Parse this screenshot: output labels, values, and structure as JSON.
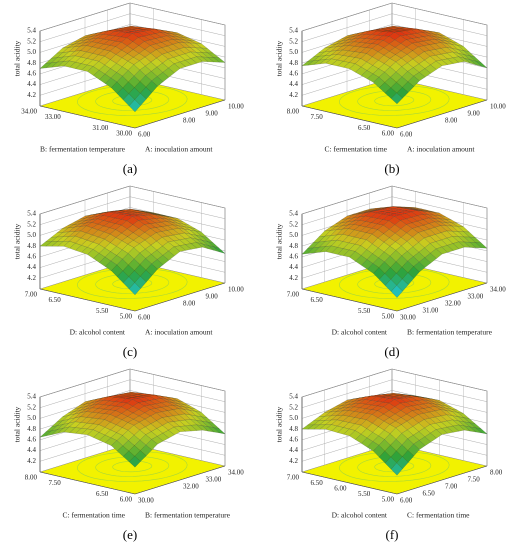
{
  "chart_data": [
    {
      "type": "surface",
      "panel": "(a)",
      "zlabel": "total acidity",
      "xlabel": "A: inoculation amount",
      "ylabel": "B: fermentation temperature",
      "xlim": [
        6,
        10
      ],
      "ylim": [
        30,
        34
      ],
      "zlim": [
        4.0,
        5.4
      ],
      "xticks": [
        {
          "value": 6,
          "label": "6.00"
        },
        {
          "value": 8,
          "label": "8.00"
        },
        {
          "value": 9,
          "label": "9.00"
        },
        {
          "value": 10,
          "label": "10.00"
        }
      ],
      "yticks": [
        {
          "value": 30,
          "label": "30.00"
        },
        {
          "value": 31,
          "label": "31.00"
        },
        {
          "value": 33,
          "label": "33.00"
        },
        {
          "value": 34,
          "label": "34.00"
        }
      ],
      "zticks": [
        4.2,
        4.4,
        4.6,
        4.8,
        {
          "value": 5,
          "label": "5.0"
        },
        5.2,
        5.4
      ],
      "colors": [
        "#20c8e0",
        "#2ea23a",
        "#c8d020",
        "#e03010"
      ],
      "z": [
        [
          4.3,
          4.65,
          4.85,
          4.85,
          4.7
        ],
        [
          4.65,
          4.95,
          5.1,
          5.1,
          4.95
        ],
        [
          4.85,
          5.1,
          5.3,
          5.25,
          5.05
        ],
        [
          4.85,
          5.1,
          5.25,
          5.2,
          5.0
        ],
        [
          4.7,
          4.95,
          5.05,
          5.0,
          4.9
        ]
      ]
    },
    {
      "type": "surface",
      "panel": "(b)",
      "zlabel": "total acidity",
      "xlabel": "A: inoculation amount",
      "ylabel": "C: fermentation time",
      "xlim": [
        6,
        10
      ],
      "ylim": [
        6,
        8
      ],
      "zlim": [
        4.0,
        5.4
      ],
      "xticks": [
        {
          "value": 6,
          "label": "6.00"
        },
        {
          "value": 8,
          "label": "8.00"
        },
        {
          "value": 9,
          "label": "9.00"
        },
        {
          "value": 10,
          "label": "10.00"
        }
      ],
      "yticks": [
        {
          "value": 6,
          "label": "6.00"
        },
        {
          "value": 6.5,
          "label": "6.50"
        },
        {
          "value": 7.5,
          "label": "7.50"
        },
        {
          "value": 8,
          "label": "8.00"
        }
      ],
      "zticks": [
        4.2,
        4.4,
        4.6,
        4.8,
        {
          "value": 5,
          "label": "5.0"
        },
        5.2,
        5.4
      ],
      "colors": [
        "#20c8e0",
        "#2ea23a",
        "#c8d020",
        "#e03010"
      ],
      "z": [
        [
          4.45,
          4.75,
          4.9,
          4.85,
          4.6
        ],
        [
          4.75,
          5.0,
          5.15,
          5.1,
          4.9
        ],
        [
          4.9,
          5.15,
          5.32,
          5.25,
          5.05
        ],
        [
          4.9,
          5.1,
          5.25,
          5.2,
          5.0
        ],
        [
          4.75,
          4.95,
          5.05,
          5.0,
          4.85
        ]
      ]
    },
    {
      "type": "surface",
      "panel": "(c)",
      "zlabel": "total acidity",
      "xlabel": "A: inoculation amount",
      "ylabel": "D: alcohol content",
      "xlim": [
        6,
        10
      ],
      "ylim": [
        5,
        7
      ],
      "zlim": [
        4.0,
        5.4
      ],
      "xticks": [
        {
          "value": 6,
          "label": "6.00"
        },
        {
          "value": 8,
          "label": "8.00"
        },
        {
          "value": 9,
          "label": "9.00"
        },
        {
          "value": 10,
          "label": "10.00"
        }
      ],
      "yticks": [
        {
          "value": 5,
          "label": "5.00"
        },
        {
          "value": 5.5,
          "label": "5.50"
        },
        {
          "value": 6.5,
          "label": "6.50"
        },
        {
          "value": 7,
          "label": "7.00"
        }
      ],
      "zticks": [
        4.2,
        4.4,
        4.6,
        4.8,
        {
          "value": 5,
          "label": "5.0"
        },
        5.2,
        5.4
      ],
      "colors": [
        "#20c8e0",
        "#2ea23a",
        "#c8d020",
        "#e03010"
      ],
      "z": [
        [
          4.3,
          4.65,
          4.85,
          4.8,
          4.55
        ],
        [
          4.65,
          4.95,
          5.1,
          5.05,
          4.85
        ],
        [
          4.85,
          5.1,
          5.3,
          5.2,
          5.0
        ],
        [
          4.9,
          5.15,
          5.28,
          5.2,
          5.0
        ],
        [
          4.8,
          5.0,
          5.1,
          5.05,
          4.9
        ]
      ]
    },
    {
      "type": "surface",
      "panel": "(d)",
      "zlabel": "total acidity",
      "xlabel": "B: fermentation temperature",
      "ylabel": "D: alcohol content",
      "xlim": [
        30,
        34
      ],
      "ylim": [
        5,
        7
      ],
      "zlim": [
        4.0,
        5.4
      ],
      "xticks": [
        {
          "value": 30,
          "label": "30.00"
        },
        {
          "value": 31,
          "label": "31.00"
        },
        {
          "value": 32,
          "label": "32.00"
        },
        {
          "value": 33,
          "label": "33.00"
        },
        {
          "value": 34,
          "label": "34.00"
        }
      ],
      "yticks": [
        {
          "value": 5,
          "label": "5.00"
        },
        {
          "value": 5.5,
          "label": "5.50"
        },
        {
          "value": 6.5,
          "label": "6.50"
        },
        {
          "value": 7,
          "label": "7.00"
        }
      ],
      "zticks": [
        4.2,
        4.4,
        4.6,
        4.8,
        {
          "value": 5,
          "label": "5.0"
        },
        5.2,
        5.4
      ],
      "colors": [
        "#20c8e0",
        "#2ea23a",
        "#c8d020",
        "#e03010"
      ],
      "z": [
        [
          4.25,
          4.6,
          4.8,
          4.8,
          4.65
        ],
        [
          4.6,
          4.9,
          5.1,
          5.1,
          4.95
        ],
        [
          4.8,
          5.1,
          5.3,
          5.28,
          5.1
        ],
        [
          4.8,
          5.1,
          5.28,
          5.25,
          5.1
        ],
        [
          4.65,
          4.95,
          5.1,
          5.1,
          5.0
        ]
      ]
    },
    {
      "type": "surface",
      "panel": "(e)",
      "zlabel": "total acidity",
      "xlabel": "B: fermentation temperature",
      "ylabel": "C: fermentation time",
      "xlim": [
        30,
        34
      ],
      "ylim": [
        6,
        8
      ],
      "zlim": [
        4.0,
        5.4
      ],
      "xticks": [
        {
          "value": 30,
          "label": "30.00"
        },
        {
          "value": 32,
          "label": "32.00"
        },
        {
          "value": 33,
          "label": "33.00"
        },
        {
          "value": 34,
          "label": "34.00"
        }
      ],
      "yticks": [
        {
          "value": 6,
          "label": "6.00"
        },
        {
          "value": 6.5,
          "label": "6.50"
        },
        {
          "value": 7.5,
          "label": "7.50"
        },
        {
          "value": 8,
          "label": "8.00"
        }
      ],
      "zticks": [
        4.2,
        4.4,
        4.6,
        4.8,
        {
          "value": 5,
          "label": "5.0"
        },
        5.2,
        5.4
      ],
      "colors": [
        "#20c8e0",
        "#2ea23a",
        "#c8d020",
        "#e03010"
      ],
      "z": [
        [
          4.5,
          4.8,
          4.9,
          4.8,
          4.6
        ],
        [
          4.8,
          5.05,
          5.15,
          5.1,
          4.9
        ],
        [
          4.9,
          5.15,
          5.3,
          5.25,
          5.05
        ],
        [
          4.85,
          5.1,
          5.25,
          5.2,
          5.0
        ],
        [
          4.65,
          4.9,
          5.05,
          5.0,
          4.85
        ]
      ]
    },
    {
      "type": "surface",
      "panel": "(f)",
      "zlabel": "total acidity",
      "xlabel": "C: fermentation time",
      "ylabel": "D: alcohol content",
      "xlim": [
        6,
        8
      ],
      "ylim": [
        5,
        7
      ],
      "zlim": [
        4.0,
        5.4
      ],
      "xticks": [
        {
          "value": 6,
          "label": "6.00"
        },
        {
          "value": 6.5,
          "label": "6.50"
        },
        {
          "value": 7,
          "label": "7.00"
        },
        {
          "value": 7.5,
          "label": "7.50"
        },
        {
          "value": 8,
          "label": "8.00"
        }
      ],
      "yticks": [
        {
          "value": 5,
          "label": "5.00"
        },
        {
          "value": 5.5,
          "label": "5.50"
        },
        {
          "value": 6,
          "label": "6.00"
        },
        {
          "value": 6.5,
          "label": "6.50"
        },
        {
          "value": 7,
          "label": "7.00"
        }
      ],
      "zticks": [
        4.2,
        4.4,
        4.6,
        4.8,
        {
          "value": 5,
          "label": "5.0"
        },
        5.2,
        5.4
      ],
      "colors": [
        "#20c8e0",
        "#2ea23a",
        "#c8d020",
        "#e03010"
      ],
      "z": [
        [
          4.35,
          4.7,
          4.85,
          4.8,
          4.6
        ],
        [
          4.7,
          5.0,
          5.12,
          5.08,
          4.88
        ],
        [
          4.88,
          5.15,
          5.3,
          5.22,
          5.02
        ],
        [
          4.9,
          5.12,
          5.26,
          5.18,
          5.0
        ],
        [
          4.8,
          4.98,
          5.08,
          5.02,
          4.88
        ]
      ]
    }
  ]
}
